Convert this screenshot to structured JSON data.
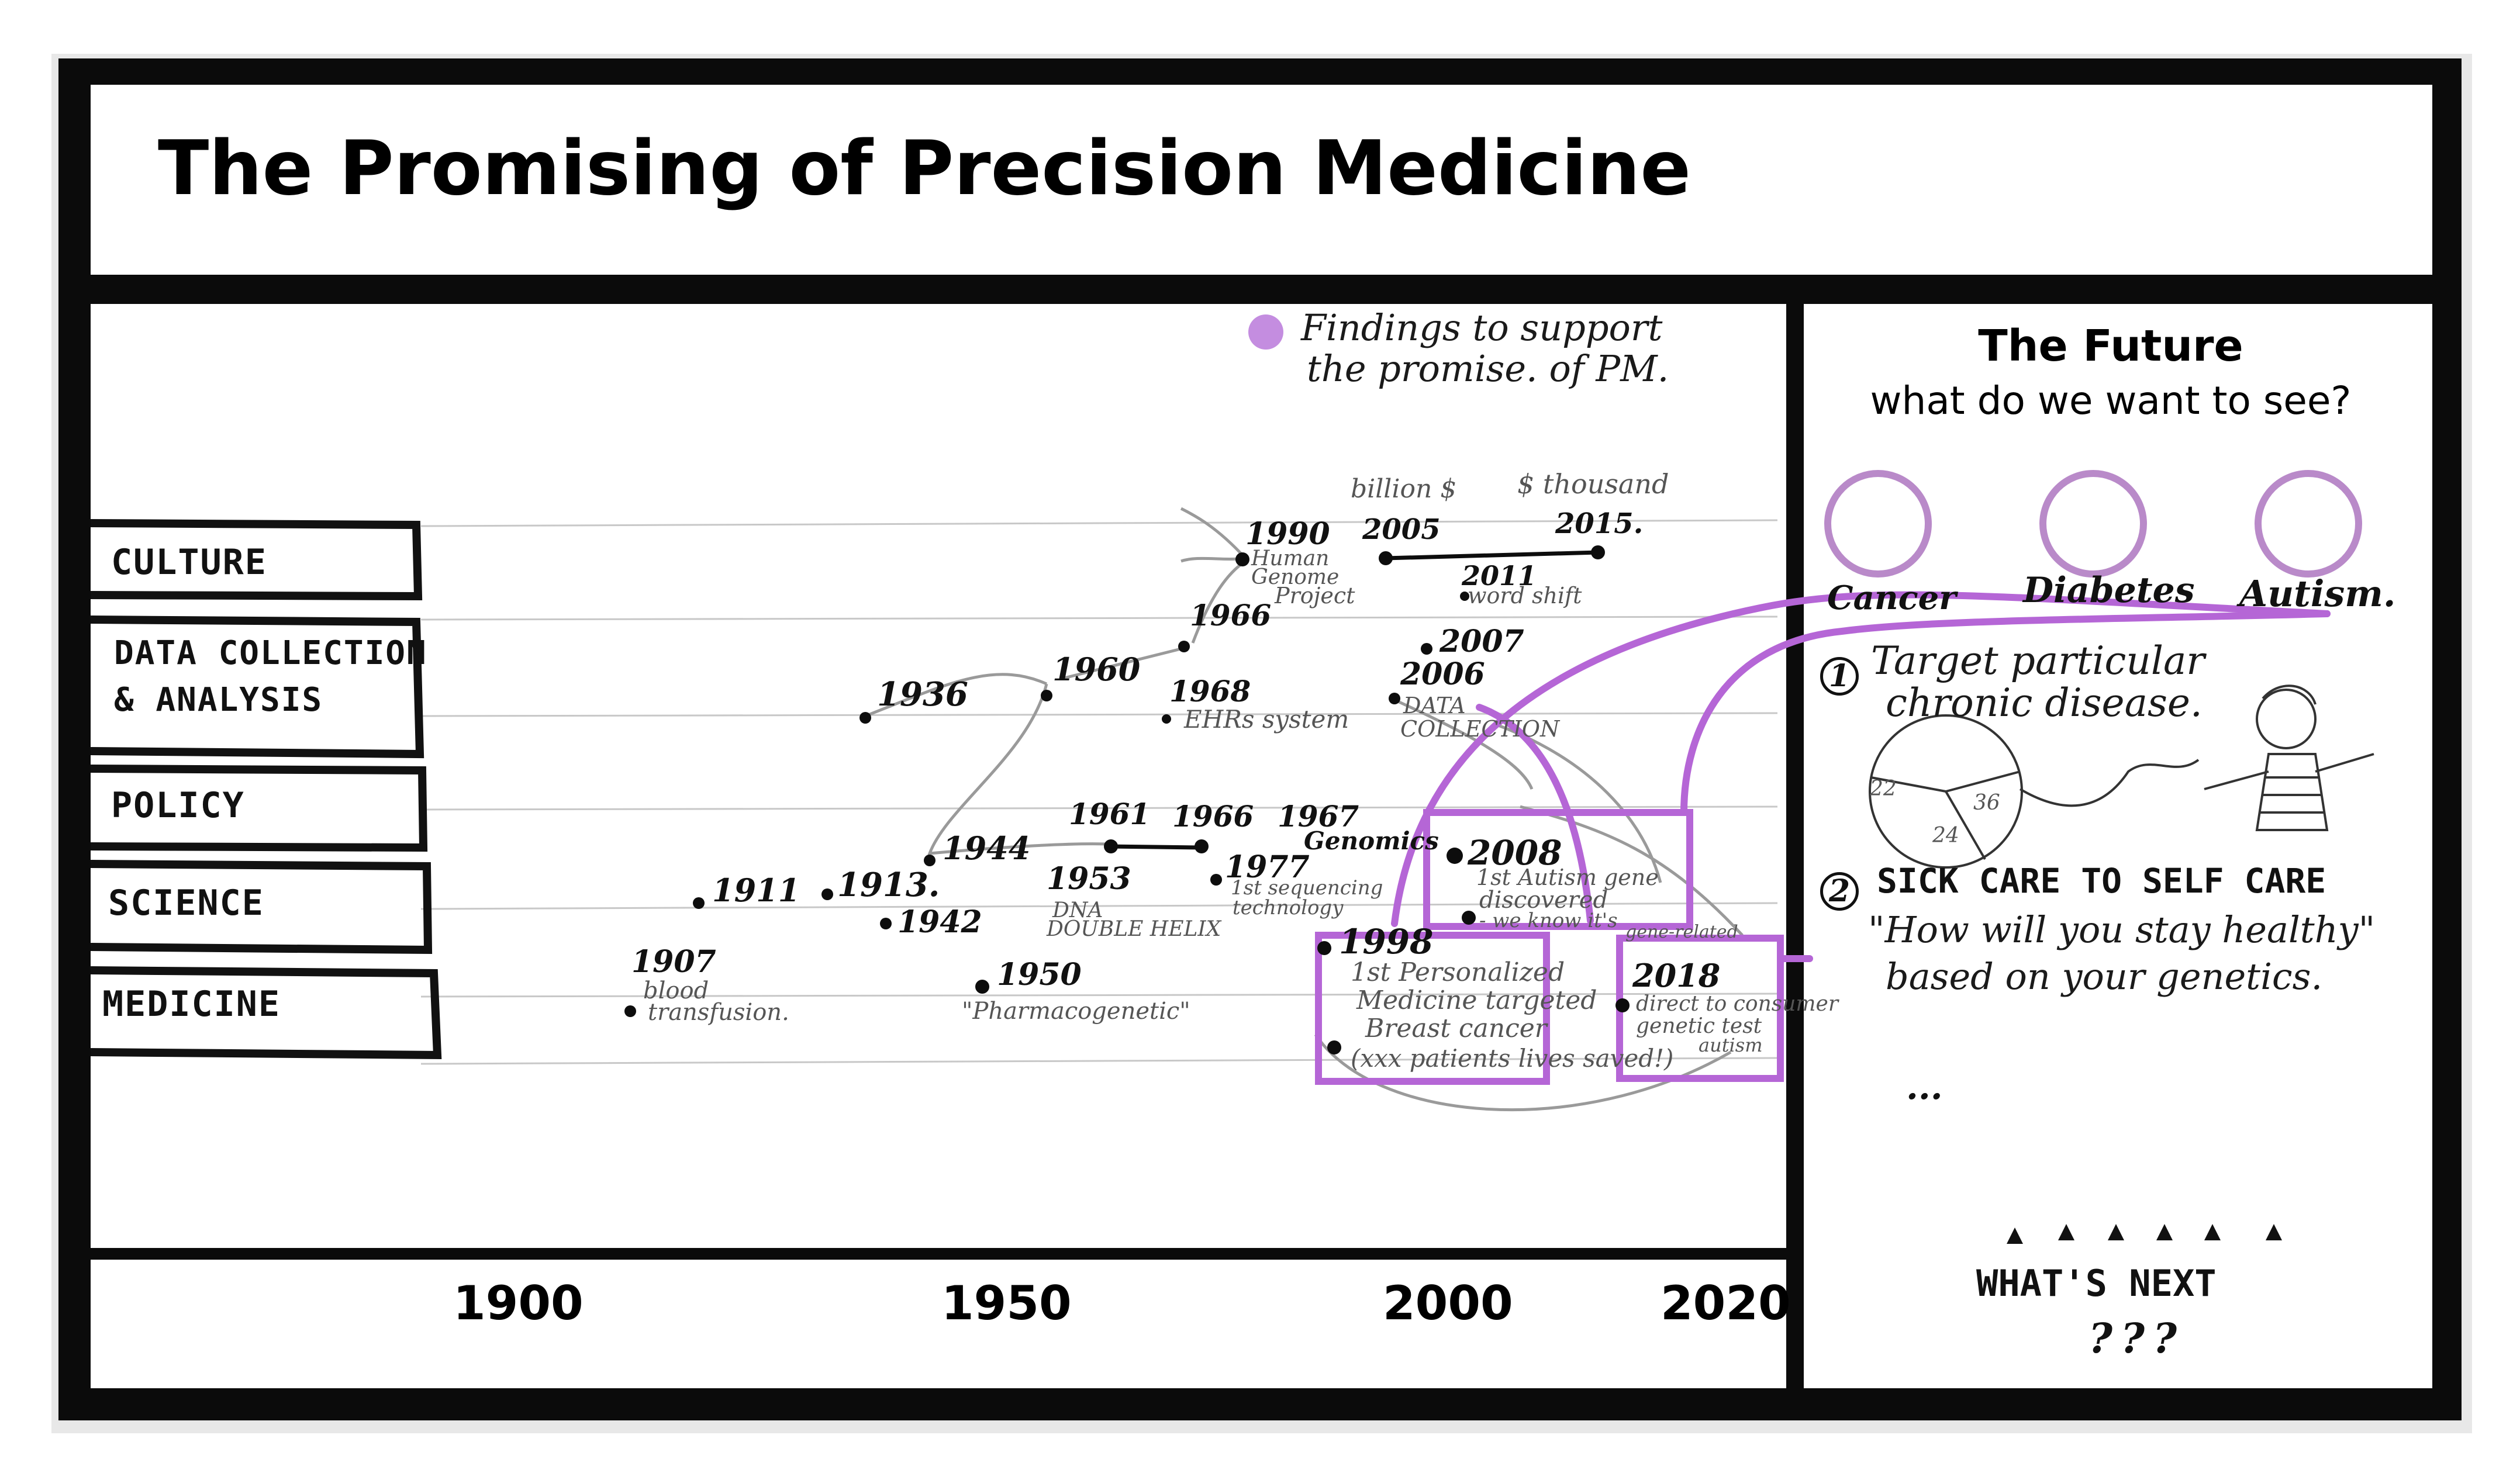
{
  "title": "The Promising of Precision Medicine",
  "legend": {
    "line1": "Findings to support",
    "line2": "the promise. of PM."
  },
  "categories": [
    "CULTURE",
    "DATA COLLECTION",
    "& ANALYSIS",
    "POLICY",
    "SCIENCE",
    "MEDICINE"
  ],
  "axis_years": [
    "1900",
    "1950",
    "2000",
    "2020"
  ],
  "events": {
    "e1907": "1907",
    "e1907_desc1": "blood",
    "e1907_desc2": "transfusion.",
    "e1911": "1911",
    "e1913": "1913.",
    "e1936": "1936",
    "e1942": "1942",
    "e1944": "1944",
    "e1950": "1950",
    "e1950_desc": "\"Pharmacogenetic\"",
    "e1953": "1953",
    "e1953_desc1": "DNA",
    "e1953_desc2": "DOUBLE HELIX",
    "e1960": "1960",
    "e1961": "1961",
    "e1966a": "1966",
    "e1966b": "1966",
    "e1967": "1967",
    "genomics": "Genomics",
    "e1968": "1968",
    "e1968_desc": "EHRs system",
    "e1977": "1977",
    "e1977_desc1": "1st sequencing",
    "e1977_desc2": "technology",
    "e1990": "1990",
    "e1990_desc1": "Human",
    "e1990_desc2": "Genome",
    "e1990_desc3": "Project",
    "billion": "billion $",
    "thousand": "$ thousand",
    "e2005": "2005",
    "e2015": "2015.",
    "e2011": "2011",
    "e2011_desc": "word shift",
    "e2007": "2007",
    "e2006": "2006",
    "e2006_desc1": "DATA",
    "e2006_desc2": "COLLECTION",
    "e2008": "2008",
    "e2008_desc1": "1st Autism gene",
    "e2008_desc2": "discovered",
    "e2008_desc3": "- we know it's",
    "e2008_desc4": "gene-related",
    "e1998": "1998",
    "e1998_desc1": "1st Personalized",
    "e1998_desc2": "Medicine targeted",
    "e1998_desc3": "Breast cancer",
    "e1998_desc4": "(xxx patients lives saved!)",
    "e2018": "2018",
    "e2018_desc1": "direct to consumer",
    "e2018_desc2": "genetic test",
    "e2018_desc3": "autism"
  },
  "future": {
    "title": "The Future",
    "subtitle": "what do we want to see?",
    "diseases": [
      "Cancer",
      "Diabetes",
      "Autism."
    ],
    "goal1_num": "1",
    "goal1_line1": "Target particular",
    "goal1_line2": "chronic disease.",
    "pie_labels": [
      "22",
      "36",
      "24"
    ],
    "goal2_num": "2",
    "goal2_line1": "SICK CARE TO SELF CARE",
    "goal2_line2": "\"How will you stay healthy\"",
    "goal2_line3": "based on your genetics.",
    "ellipsis": "...",
    "next": "WHAT'S NEXT",
    "question_marks": "???"
  },
  "colors": {
    "accent": "#b566d6",
    "accent_light": "#d7a9ea",
    "frame": "#111111"
  }
}
